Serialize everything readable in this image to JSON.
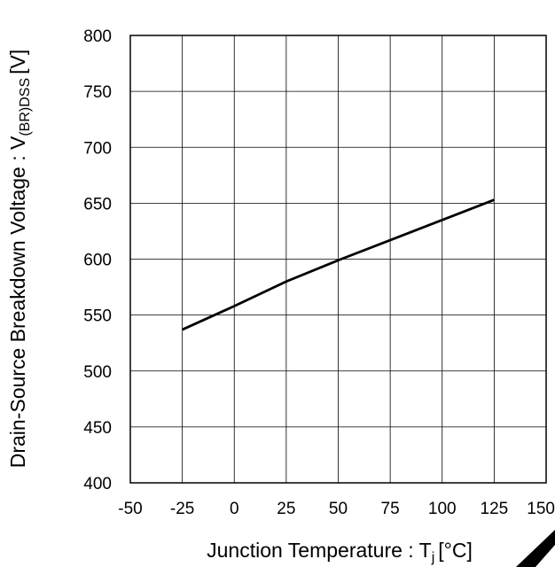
{
  "chart_data": {
    "type": "line",
    "xlabel": "Junction Temperature : T",
    "xlabel_subscript": "j",
    "xlabel_unit": "[°C]",
    "ylabel": "Drain-Source Breakdown Voltage : V",
    "ylabel_subscript": "(BR)DSS",
    "ylabel_unit": "[V]",
    "xlim": [
      -50,
      150
    ],
    "ylim": [
      400,
      800
    ],
    "x_ticks": [
      "-50",
      "-25",
      "0",
      "25",
      "50",
      "75",
      "100",
      "125",
      "150"
    ],
    "y_ticks": [
      "800",
      "750",
      "700",
      "650",
      "600",
      "550",
      "500",
      "450",
      "400"
    ],
    "grid": true,
    "series": [
      {
        "x": [
          -25,
          0,
          25,
          50,
          75,
          100,
          125
        ],
        "y": [
          537,
          558,
          580,
          599,
          617,
          635,
          653
        ]
      }
    ],
    "line_color": "#000000"
  }
}
